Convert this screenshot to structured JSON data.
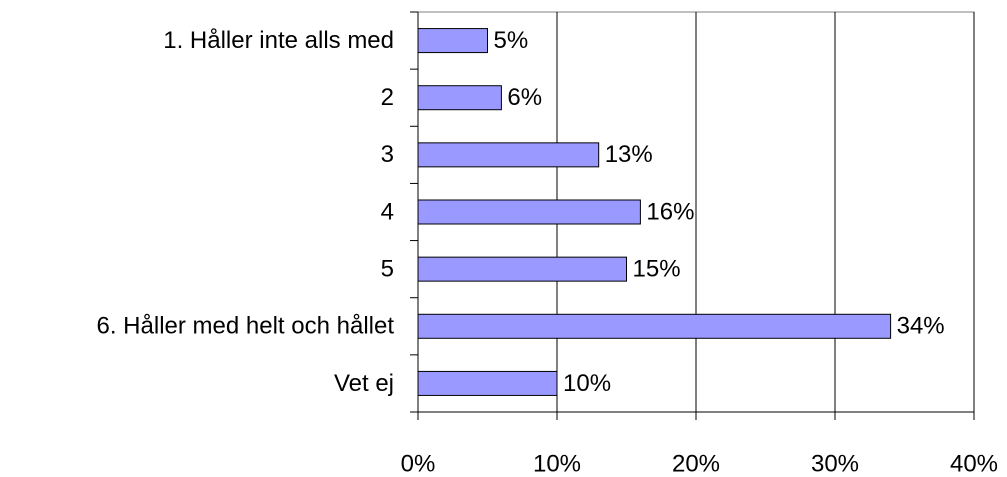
{
  "chart_data": {
    "type": "hbar",
    "categories": [
      "1. Håller inte alls med",
      "2",
      "3",
      "4",
      "5",
      "6. Håller med helt och hållet",
      "Vet ej"
    ],
    "values": [
      5,
      6,
      13,
      16,
      15,
      34,
      10
    ],
    "value_labels": [
      "5%",
      "6%",
      "13%",
      "16%",
      "15%",
      "34%",
      "10%"
    ],
    "color": "#9999ff",
    "xlim": [
      0,
      40
    ],
    "xticks": [
      {
        "value": 0,
        "label": "0%"
      },
      {
        "value": 10,
        "label": "10%"
      },
      {
        "value": 20,
        "label": "20%"
      },
      {
        "value": 30,
        "label": "30%"
      },
      {
        "value": 40,
        "label": "40%"
      }
    ],
    "grid": true
  }
}
